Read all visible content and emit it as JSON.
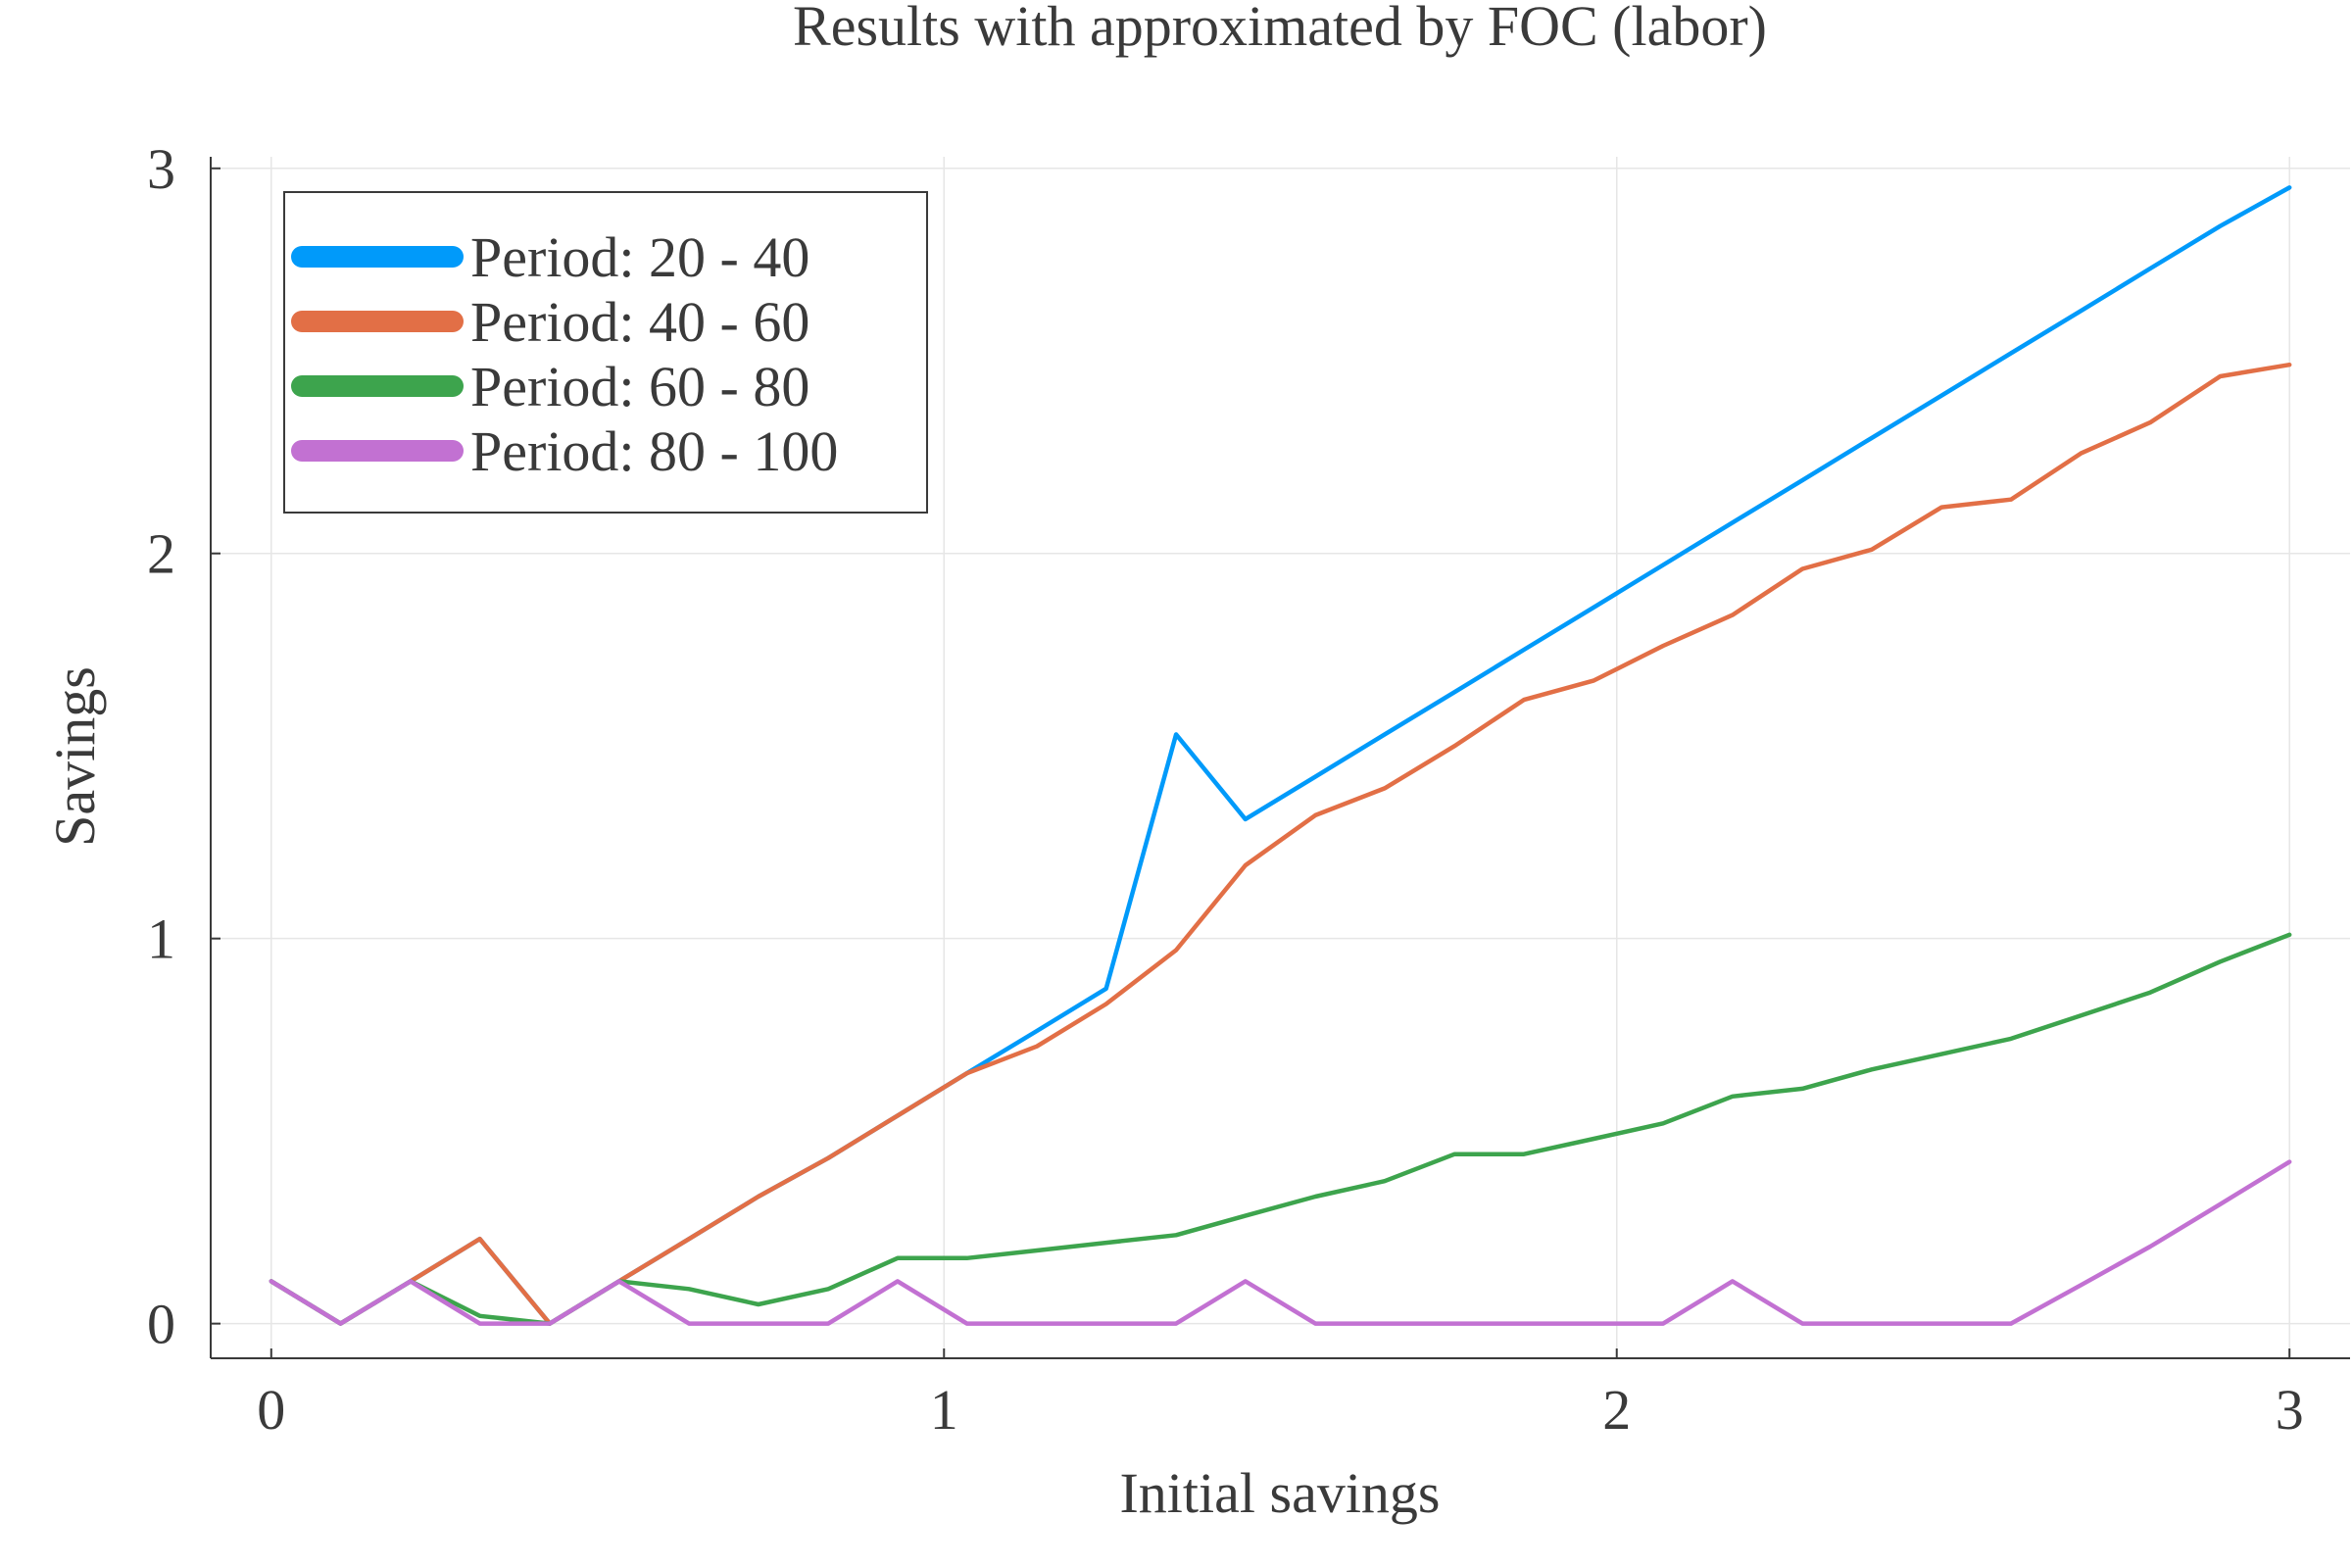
{
  "chart_data": {
    "type": "line",
    "title": "Results with approximated by FOC (labor)",
    "xlabel": "Initial savings",
    "ylabel": "Savings",
    "xlim": [
      -0.09,
      3.09
    ],
    "ylim": [
      -0.09,
      3.03
    ],
    "xticks": [
      0,
      1,
      2,
      3
    ],
    "xtick_labels": [
      "0",
      "1",
      "2",
      "3"
    ],
    "yticks": [
      0,
      1,
      2,
      3
    ],
    "ytick_labels": [
      "0",
      "1",
      "2",
      "3"
    ],
    "grid": true,
    "legend_position": "top-left",
    "x": [
      0.0,
      0.103,
      0.207,
      0.31,
      0.414,
      0.517,
      0.621,
      0.724,
      0.828,
      0.931,
      1.034,
      1.138,
      1.241,
      1.345,
      1.448,
      1.552,
      1.655,
      1.759,
      1.862,
      1.966,
      2.069,
      2.172,
      2.276,
      2.379,
      2.483,
      2.586,
      2.69,
      2.793,
      2.897,
      3.0
    ],
    "series": [
      {
        "name": "Period: 20 - 40",
        "color": "#009AFA",
        "values": [
          0.11,
          0.0,
          0.11,
          0.22,
          0.0,
          0.11,
          0.22,
          0.33,
          0.43,
          0.54,
          0.65,
          0.76,
          0.87,
          1.53,
          1.31,
          1.42,
          1.53,
          1.64,
          1.75,
          1.86,
          1.97,
          2.08,
          2.19,
          2.3,
          2.41,
          2.52,
          2.63,
          2.74,
          2.85,
          2.95
        ]
      },
      {
        "name": "Period: 40 - 60",
        "color": "#E26F46",
        "values": [
          0.11,
          0.0,
          0.11,
          0.22,
          0.0,
          0.11,
          0.22,
          0.33,
          0.43,
          0.54,
          0.65,
          0.72,
          0.83,
          0.97,
          1.19,
          1.32,
          1.39,
          1.5,
          1.62,
          1.67,
          1.76,
          1.84,
          1.96,
          2.01,
          2.12,
          2.14,
          2.26,
          2.34,
          2.46,
          2.49
        ]
      },
      {
        "name": "Period: 60 - 80",
        "color": "#3DA44D",
        "values": [
          0.11,
          0.0,
          0.11,
          0.02,
          0.0,
          0.11,
          0.09,
          0.05,
          0.09,
          0.17,
          0.17,
          0.19,
          0.21,
          0.23,
          0.28,
          0.33,
          0.37,
          0.44,
          0.44,
          0.48,
          0.52,
          0.59,
          0.61,
          0.66,
          0.7,
          0.74,
          0.8,
          0.86,
          0.94,
          1.01
        ]
      },
      {
        "name": "Period: 80 - 100",
        "color": "#C271D2",
        "values": [
          0.11,
          0.0,
          0.11,
          0.0,
          0.0,
          0.11,
          0.0,
          0.0,
          0.0,
          0.11,
          0.0,
          0.0,
          0.0,
          0.0,
          0.11,
          0.0,
          0.0,
          0.0,
          0.0,
          0.0,
          0.0,
          0.11,
          0.0,
          0.0,
          0.0,
          0.0,
          0.1,
          0.2,
          0.31,
          0.42
        ]
      }
    ]
  }
}
